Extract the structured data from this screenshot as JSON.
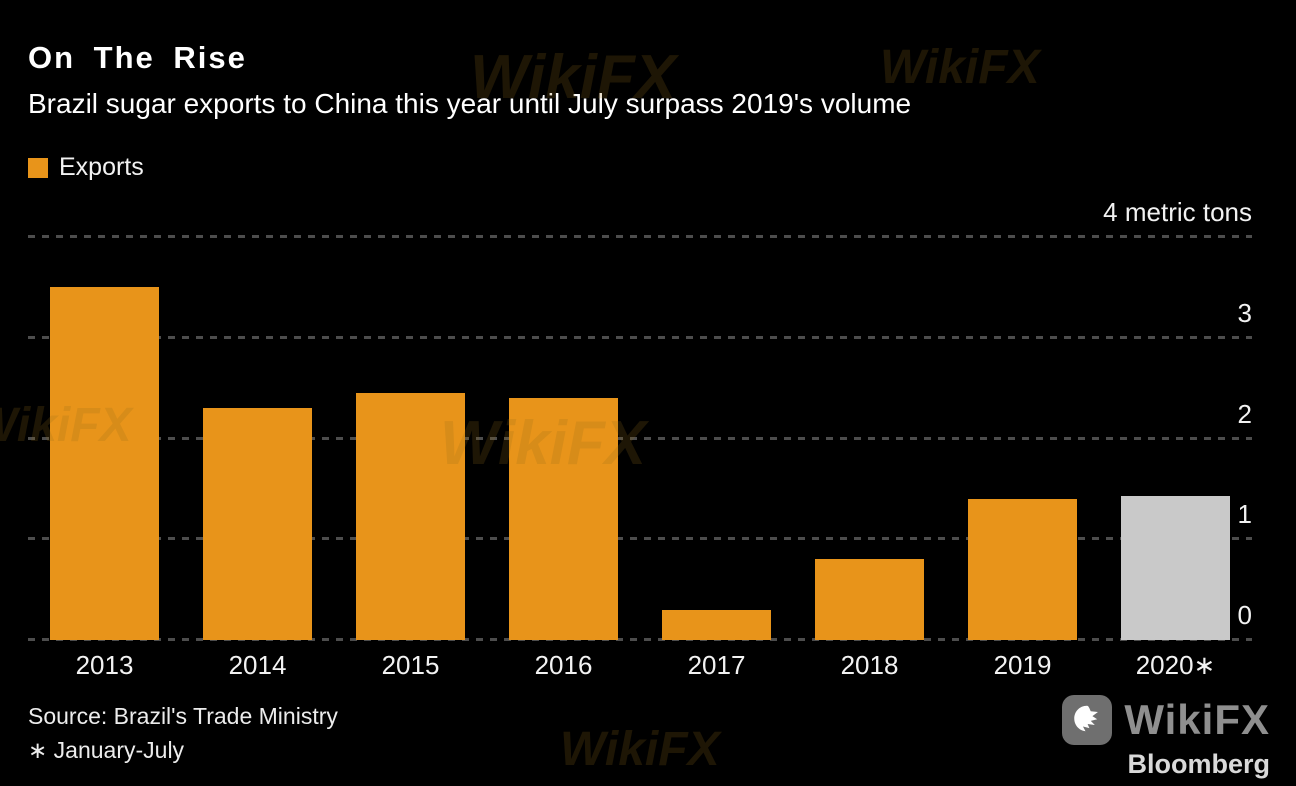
{
  "header": {
    "title": "On The Rise",
    "subtitle": "Brazil sugar exports to China this year until July surpass 2019's volume"
  },
  "legend": {
    "label": "Exports",
    "color": "#E8941A"
  },
  "chart_data": {
    "type": "bar",
    "title": "On The Rise",
    "subtitle": "Brazil sugar exports to China this year until July surpass 2019's volume",
    "categories": [
      "2013",
      "2014",
      "2015",
      "2016",
      "2017",
      "2018",
      "2019",
      "2020∗"
    ],
    "values": [
      3.5,
      2.3,
      2.45,
      2.4,
      0.3,
      0.8,
      1.4,
      1.43
    ],
    "series_name": "Exports",
    "unit": "metric tons",
    "bar_colors": [
      "#E8941A",
      "#E8941A",
      "#E8941A",
      "#E8941A",
      "#E8941A",
      "#E8941A",
      "#E8941A",
      "#C9C9C9"
    ],
    "ylim": [
      0,
      4
    ],
    "yticks": [
      {
        "value": 4,
        "label": "4 metric tons"
      },
      {
        "value": 3,
        "label": "3"
      },
      {
        "value": 2,
        "label": "2"
      },
      {
        "value": 1,
        "label": "1"
      },
      {
        "value": 0,
        "label": "0"
      }
    ],
    "grid": "dashed horizontal",
    "legend_position": "top-left",
    "note": "2020 bar shown in gray (partial year, January-July)"
  },
  "footer": {
    "source": "Source: Brazil's Trade Ministry",
    "note": "∗ January-July"
  },
  "branding": {
    "wikifx": "WikiFX",
    "bloomberg": "Bloomberg"
  },
  "watermark": "WikiFX"
}
